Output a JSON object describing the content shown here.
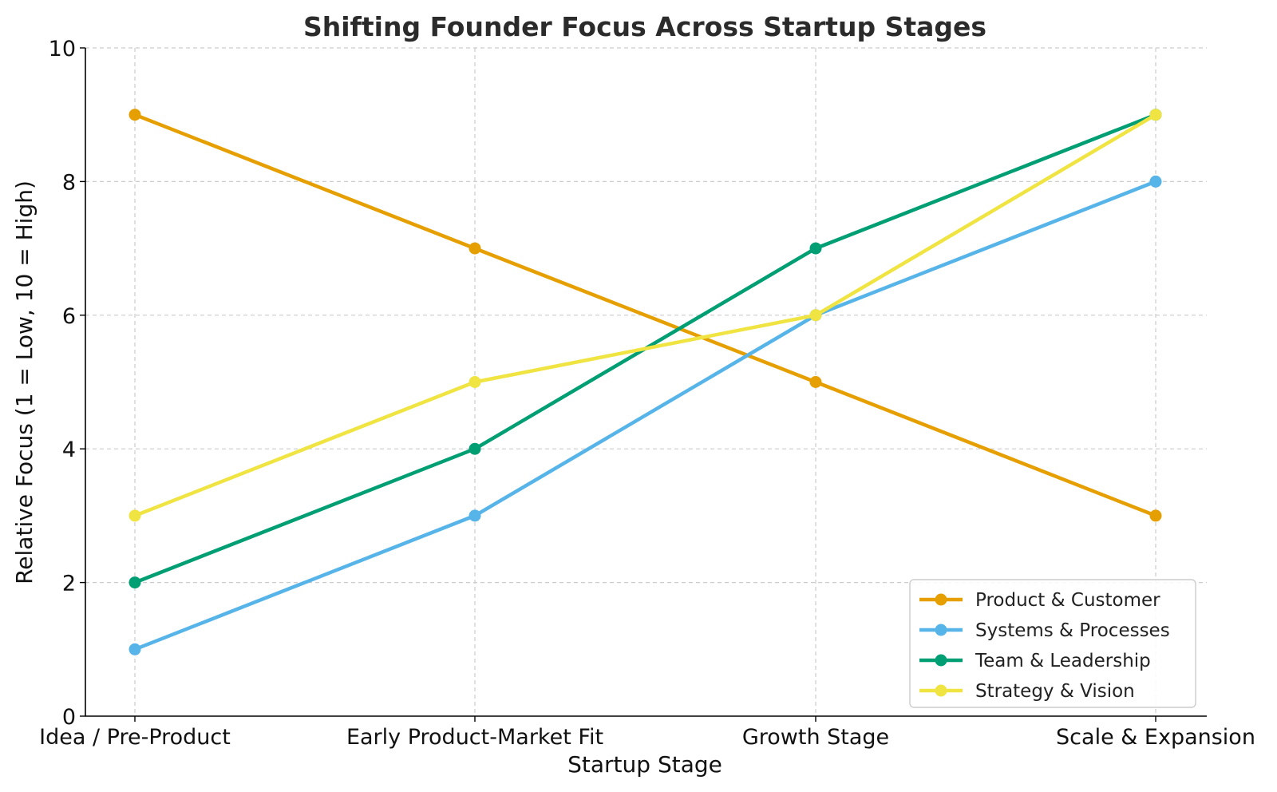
{
  "chart_data": {
    "type": "line",
    "title": "Shifting Founder Focus Across Startup Stages",
    "xlabel": "Startup Stage",
    "ylabel": "Relative Focus (1 = Low, 10 = High)",
    "categories": [
      "Idea / Pre-Product",
      "Early Product-Market Fit",
      "Growth Stage",
      "Scale & Expansion"
    ],
    "ylim": [
      0,
      10
    ],
    "yticks": [
      0,
      2,
      4,
      6,
      8,
      10
    ],
    "grid": true,
    "legend_position": "bottom-right",
    "series": [
      {
        "name": "Product & Customer",
        "color": "#E69F00",
        "values": [
          9,
          7,
          5,
          3
        ]
      },
      {
        "name": "Systems & Processes",
        "color": "#56B4E9",
        "values": [
          1,
          3,
          6,
          8
        ]
      },
      {
        "name": "Team & Leadership",
        "color": "#009E73",
        "values": [
          2,
          4,
          7,
          9
        ]
      },
      {
        "name": "Strategy & Vision",
        "color": "#F0E442",
        "values": [
          3,
          5,
          6,
          9
        ]
      }
    ]
  }
}
